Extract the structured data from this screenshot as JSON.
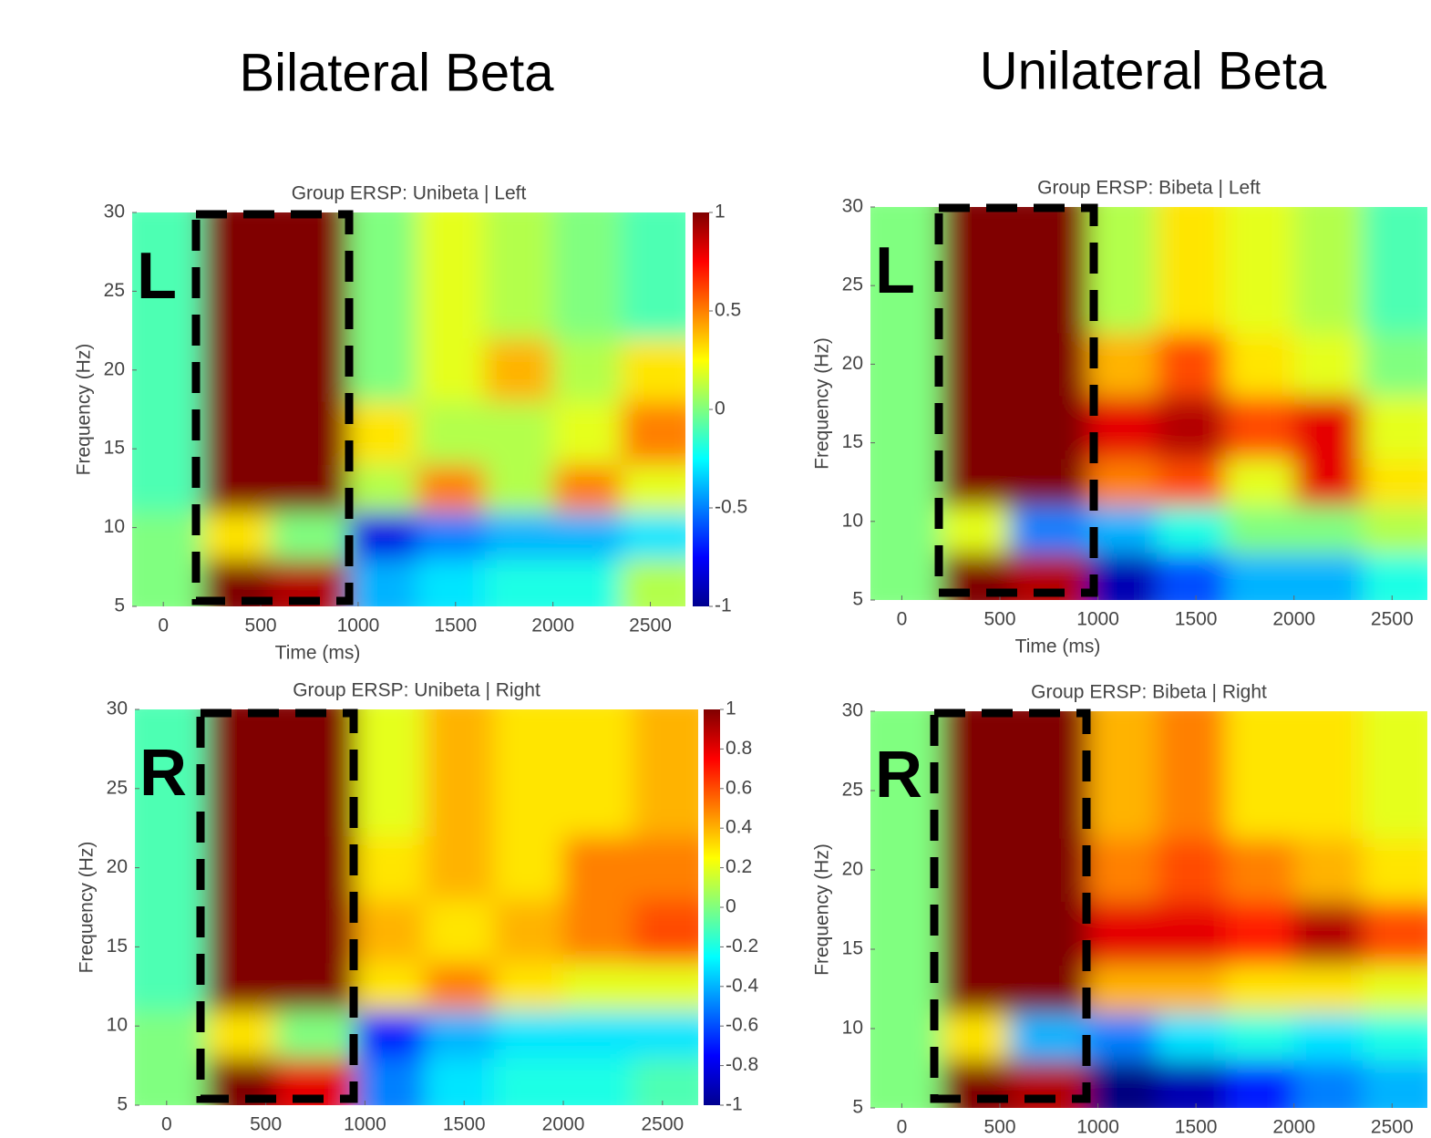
{
  "headers": [
    "Bilateral Beta",
    "Unilateral Beta"
  ],
  "chart_data": [
    {
      "type": "heatmap",
      "title": "Group ERSP: Unibeta | Left",
      "xlabel": "Time (ms)",
      "ylabel": "Frequency (Hz)",
      "annotation": "L",
      "xlim": [
        -160,
        2680
      ],
      "ylim": [
        5,
        30
      ],
      "xticks": [
        0,
        500,
        1000,
        1500,
        2000,
        2500
      ],
      "yticks": [
        5,
        10,
        15,
        20,
        25,
        30
      ],
      "x_edges": [
        -160,
        200,
        550,
        950,
        1300,
        1650,
        2000,
        2350,
        2680
      ],
      "y_edges": [
        5,
        8,
        11,
        14,
        18,
        22,
        30
      ],
      "z": [
        [
          0,
          1,
          0.9,
          -0.4,
          -0.3,
          -0.2,
          -0.2,
          0.1
        ],
        [
          0,
          0.3,
          0,
          -0.8,
          -0.5,
          -0.4,
          -0.4,
          -0.3
        ],
        [
          -0.1,
          1,
          1,
          0.1,
          0.5,
          0.1,
          0.5,
          0.2
        ],
        [
          -0.1,
          1,
          1,
          0.3,
          0.1,
          0.1,
          0.2,
          0.5
        ],
        [
          -0.1,
          1,
          1,
          0,
          0.2,
          0.4,
          0.1,
          0.3
        ],
        [
          -0.1,
          1,
          1,
          0,
          0.2,
          0.1,
          0,
          -0.1
        ]
      ],
      "clim": [
        -1,
        1
      ],
      "colorbar": true,
      "cticks": [
        -1,
        -0.5,
        0,
        0.5,
        1
      ]
    },
    {
      "type": "heatmap",
      "title": "Group ERSP: Bibeta | Left",
      "xlabel": "Time (ms)",
      "ylabel": "Frequency (Hz)",
      "annotation": "L",
      "xlim": [
        -160,
        2680
      ],
      "ylim": [
        5,
        30
      ],
      "xticks": [
        0,
        500,
        1000,
        1500,
        2000,
        2500
      ],
      "yticks": [
        5,
        10,
        15,
        20,
        25,
        30
      ],
      "x_edges": [
        -160,
        200,
        550,
        950,
        1300,
        1650,
        2000,
        2350,
        2680
      ],
      "y_edges": [
        5,
        8,
        11,
        14,
        18,
        22,
        30
      ],
      "z": [
        [
          0,
          1,
          0.9,
          -0.9,
          -0.6,
          -0.4,
          -0.4,
          -0.2
        ],
        [
          0,
          0.2,
          -0.5,
          -0.4,
          -0.2,
          0,
          0,
          0.1
        ],
        [
          0,
          1,
          1,
          0.5,
          0.6,
          0.2,
          0.8,
          0.3
        ],
        [
          0,
          1,
          1,
          0.8,
          0.9,
          0.6,
          0.8,
          0.2
        ],
        [
          0,
          1,
          1,
          0.4,
          0.6,
          0.3,
          0.2,
          0
        ],
        [
          0,
          1,
          1,
          0.1,
          0.3,
          0.2,
          0.1,
          -0.1
        ]
      ],
      "clim": [
        -1,
        1
      ],
      "colorbar": false
    },
    {
      "type": "heatmap",
      "title": "Group ERSP: Unibeta | Right",
      "ylabel": "Frequency (Hz)",
      "annotation": "R",
      "xlim": [
        -160,
        2680
      ],
      "ylim": [
        5,
        30
      ],
      "xticks": [
        0,
        500,
        1000,
        1500,
        2000,
        2500
      ],
      "yticks": [
        5,
        10,
        15,
        20,
        25,
        30
      ],
      "x_edges": [
        -160,
        200,
        550,
        950,
        1300,
        1650,
        2000,
        2350,
        2680
      ],
      "y_edges": [
        5,
        8,
        11,
        14,
        18,
        22,
        30
      ],
      "z": [
        [
          0,
          1,
          0.8,
          -0.5,
          -0.3,
          -0.2,
          -0.2,
          -0.1
        ],
        [
          0,
          0.3,
          0,
          -0.7,
          -0.4,
          -0.3,
          -0.3,
          -0.3
        ],
        [
          -0.1,
          1,
          1,
          0.3,
          0.5,
          0.3,
          0.2,
          0.2
        ],
        [
          -0.1,
          1,
          1,
          0.4,
          0.3,
          0.4,
          0.5,
          0.6
        ],
        [
          -0.1,
          1,
          1,
          0.3,
          0.4,
          0.3,
          0.5,
          0.5
        ],
        [
          -0.1,
          1,
          1,
          0.2,
          0.4,
          0.3,
          0.3,
          0.4
        ]
      ],
      "clim": [
        -1,
        1
      ],
      "colorbar": true,
      "cticks": [
        -1,
        -0.8,
        -0.6,
        -0.4,
        -0.2,
        0,
        0.2,
        0.4,
        0.6,
        0.8,
        1
      ]
    },
    {
      "type": "heatmap",
      "title": "Group ERSP: Bibeta | Right",
      "ylabel": "Frequency (Hz)",
      "annotation": "R",
      "xlim": [
        -160,
        2680
      ],
      "ylim": [
        5,
        30
      ],
      "xticks": [
        0,
        500,
        1000,
        1500,
        2000,
        2500
      ],
      "yticks": [
        5,
        10,
        15,
        20,
        25,
        30
      ],
      "x_edges": [
        -160,
        200,
        550,
        950,
        1300,
        1650,
        2000,
        2350,
        2680
      ],
      "y_edges": [
        5,
        8,
        11,
        14,
        18,
        22,
        30
      ],
      "z": [
        [
          0,
          1,
          0.9,
          -1,
          -0.9,
          -0.7,
          -0.5,
          -0.4
        ],
        [
          0,
          0.3,
          -0.4,
          -0.5,
          -0.3,
          -0.2,
          -0.3,
          -0.2
        ],
        [
          0,
          1,
          1,
          0.4,
          0.4,
          0.3,
          0.3,
          0.2
        ],
        [
          0,
          1,
          1,
          0.8,
          0.8,
          0.7,
          0.9,
          0.6
        ],
        [
          0,
          1,
          1,
          0.5,
          0.6,
          0.5,
          0.4,
          0.3
        ],
        [
          0,
          1,
          1,
          0.4,
          0.5,
          0.3,
          0.3,
          0.2
        ]
      ],
      "clim": [
        -1,
        1
      ],
      "colorbar": false
    }
  ]
}
